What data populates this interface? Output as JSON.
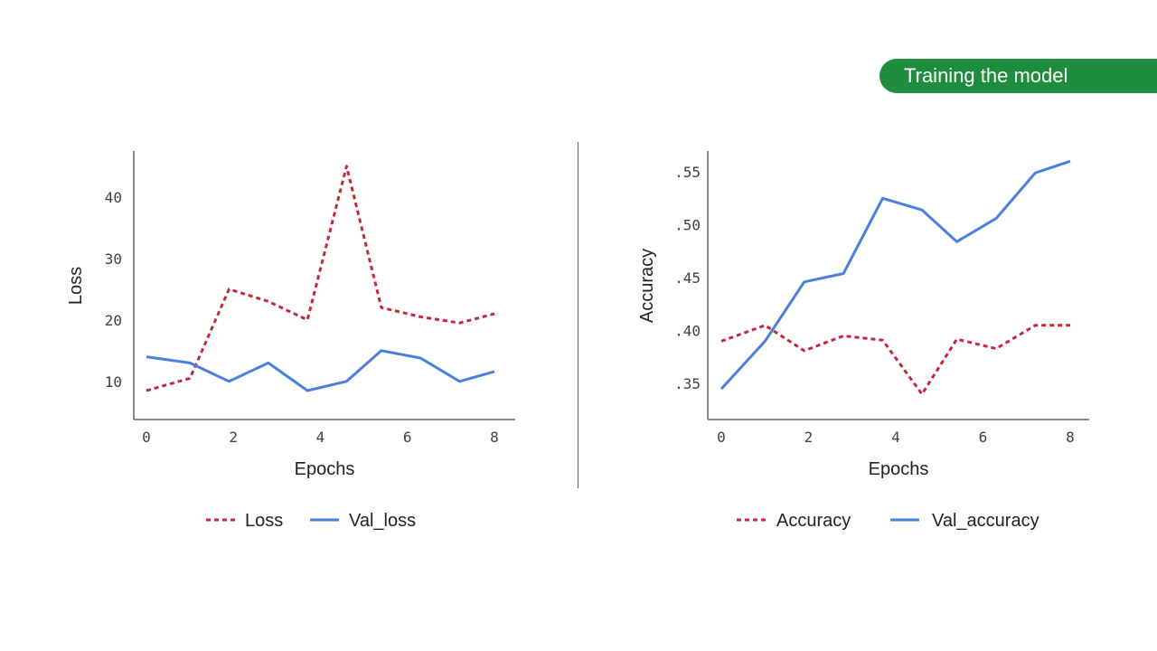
{
  "banner": {
    "label": "Training the model",
    "color": "#1e8e3e"
  },
  "colors": {
    "dashed_series": "#c5283d",
    "solid_series": "#4a7fdb",
    "axis": "#5f6368"
  },
  "chart_data": [
    {
      "type": "line",
      "xlabel": "Epochs",
      "ylabel": "Loss",
      "xlim": [
        0,
        8
      ],
      "ylim": [
        6,
        46
      ],
      "xticks": [
        0,
        2,
        4,
        6,
        8
      ],
      "xtick_labels": [
        "0",
        "2",
        "4",
        "6",
        "8"
      ],
      "yticks": [
        10,
        20,
        30,
        40
      ],
      "ytick_labels": [
        "10",
        "20",
        "30",
        "40"
      ],
      "x": [
        0,
        1,
        1.9,
        2.8,
        3.7,
        4.6,
        5.4,
        6.3,
        7.2,
        8
      ],
      "series": [
        {
          "name": "Loss",
          "style": "dashed",
          "values": [
            8.5,
            10.5,
            25,
            23,
            20,
            45,
            22,
            20.5,
            19.5,
            21
          ]
        },
        {
          "name": "Val_loss",
          "style": "solid",
          "values": [
            14,
            13,
            10,
            13,
            8.5,
            10,
            15,
            13.8,
            10,
            11.6
          ]
        }
      ],
      "legend": "bottom"
    },
    {
      "type": "line",
      "xlabel": "Epochs",
      "ylabel": "Accuracy",
      "xlim": [
        0,
        8
      ],
      "ylim": [
        0.328,
        0.562
      ],
      "xticks": [
        0,
        2,
        4,
        6,
        8
      ],
      "xtick_labels": [
        "0",
        "2",
        "4",
        "6",
        "8"
      ],
      "yticks": [
        0.35,
        0.4,
        0.45,
        0.5,
        0.55
      ],
      "ytick_labels": [
        ".35",
        ".40",
        ".45",
        ".50",
        ".55"
      ],
      "x": [
        0,
        1,
        1.9,
        2.8,
        3.7,
        4.6,
        5.4,
        6.3,
        7.2,
        8
      ],
      "series": [
        {
          "name": "Accuracy",
          "style": "dashed",
          "values": [
            0.39,
            0.405,
            0.381,
            0.395,
            0.391,
            0.34,
            0.392,
            0.383,
            0.405,
            0.405
          ]
        },
        {
          "name": "Val_accuracy",
          "style": "solid",
          "values": [
            0.345,
            0.39,
            0.446,
            0.454,
            0.525,
            0.514,
            0.484,
            0.506,
            0.549,
            0.56
          ]
        }
      ],
      "legend": "bottom"
    }
  ]
}
